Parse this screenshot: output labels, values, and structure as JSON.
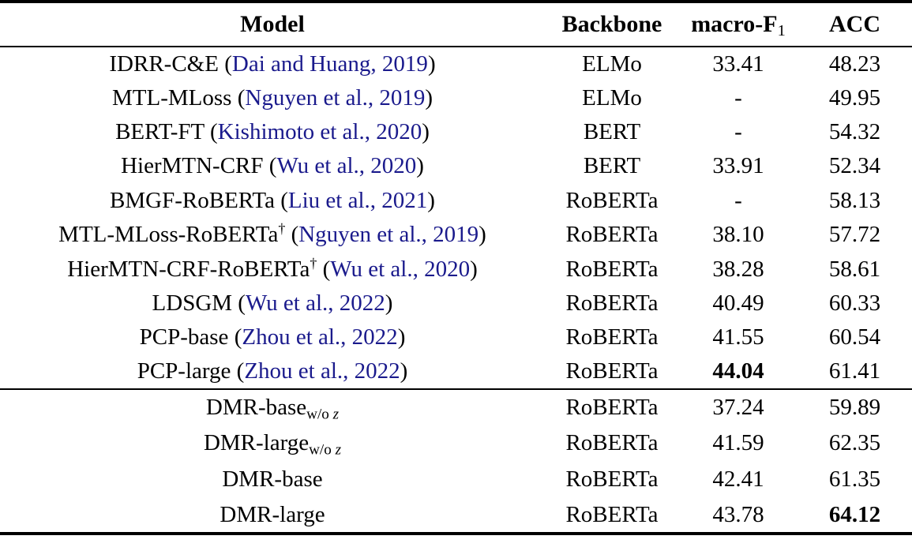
{
  "colors": {
    "citation": "#1a1a8c",
    "text": "#000000",
    "background": "#ffffff"
  },
  "table": {
    "headers": [
      {
        "label": "Model"
      },
      {
        "label": "Backbone"
      },
      {
        "label": "macro-F",
        "subscript": "1"
      },
      {
        "label": "ACC"
      }
    ],
    "sections": [
      {
        "rows": [
          {
            "model": "IDRR-C&E",
            "citation": "Dai and Huang, 2019",
            "backbone": "ELMo",
            "macro_f1": "33.41",
            "macro_f1_bold": false,
            "acc": "48.23",
            "acc_bold": false
          },
          {
            "model": "MTL-MLoss",
            "citation": "Nguyen et al., 2019",
            "backbone": "ELMo",
            "macro_f1": "-",
            "macro_f1_bold": false,
            "acc": "49.95",
            "acc_bold": false
          },
          {
            "model": "BERT-FT",
            "citation": "Kishimoto et al., 2020",
            "backbone": "BERT",
            "macro_f1": "-",
            "macro_f1_bold": false,
            "acc": "54.32",
            "acc_bold": false
          },
          {
            "model": "HierMTN-CRF",
            "citation": "Wu et al., 2020",
            "backbone": "BERT",
            "macro_f1": "33.91",
            "macro_f1_bold": false,
            "acc": "52.34",
            "acc_bold": false
          },
          {
            "model": "BMGF-RoBERTa",
            "citation": "Liu et al., 2021",
            "backbone": "RoBERTa",
            "macro_f1": "-",
            "macro_f1_bold": false,
            "acc": "58.13",
            "acc_bold": false
          },
          {
            "model": "MTL-MLoss-RoBERTa",
            "model_sup": "†",
            "citation": "Nguyen et al., 2019",
            "backbone": "RoBERTa",
            "macro_f1": "38.10",
            "macro_f1_bold": false,
            "acc": "57.72",
            "acc_bold": false
          },
          {
            "model": "HierMTN-CRF-RoBERTa",
            "model_sup": "†",
            "citation": "Wu et al., 2020",
            "backbone": "RoBERTa",
            "macro_f1": "38.28",
            "macro_f1_bold": false,
            "acc": "58.61",
            "acc_bold": false
          },
          {
            "model": "LDSGM",
            "citation": "Wu et al., 2022",
            "backbone": "RoBERTa",
            "macro_f1": "40.49",
            "macro_f1_bold": false,
            "acc": "60.33",
            "acc_bold": false
          },
          {
            "model": "PCP-base",
            "citation": "Zhou et al., 2022",
            "backbone": "RoBERTa",
            "macro_f1": "41.55",
            "macro_f1_bold": false,
            "acc": "60.54",
            "acc_bold": false
          },
          {
            "model": "PCP-large",
            "citation": "Zhou et al., 2022",
            "backbone": "RoBERTa",
            "macro_f1": "44.04",
            "macro_f1_bold": true,
            "acc": "61.41",
            "acc_bold": false
          }
        ]
      },
      {
        "rows": [
          {
            "model": "DMR-base",
            "model_sub": {
              "prefix": "w/o",
              "variable": "z"
            },
            "backbone": "RoBERTa",
            "macro_f1": "37.24",
            "macro_f1_bold": false,
            "acc": "59.89",
            "acc_bold": false
          },
          {
            "model": "DMR-large",
            "model_sub": {
              "prefix": "w/o",
              "variable": "z"
            },
            "backbone": "RoBERTa",
            "macro_f1": "41.59",
            "macro_f1_bold": false,
            "acc": "62.35",
            "acc_bold": false
          },
          {
            "model": "DMR-base",
            "backbone": "RoBERTa",
            "macro_f1": "42.41",
            "macro_f1_bold": false,
            "acc": "61.35",
            "acc_bold": false
          },
          {
            "model": "DMR-large",
            "backbone": "RoBERTa",
            "macro_f1": "43.78",
            "macro_f1_bold": false,
            "acc": "64.12",
            "acc_bold": true
          }
        ]
      }
    ]
  }
}
